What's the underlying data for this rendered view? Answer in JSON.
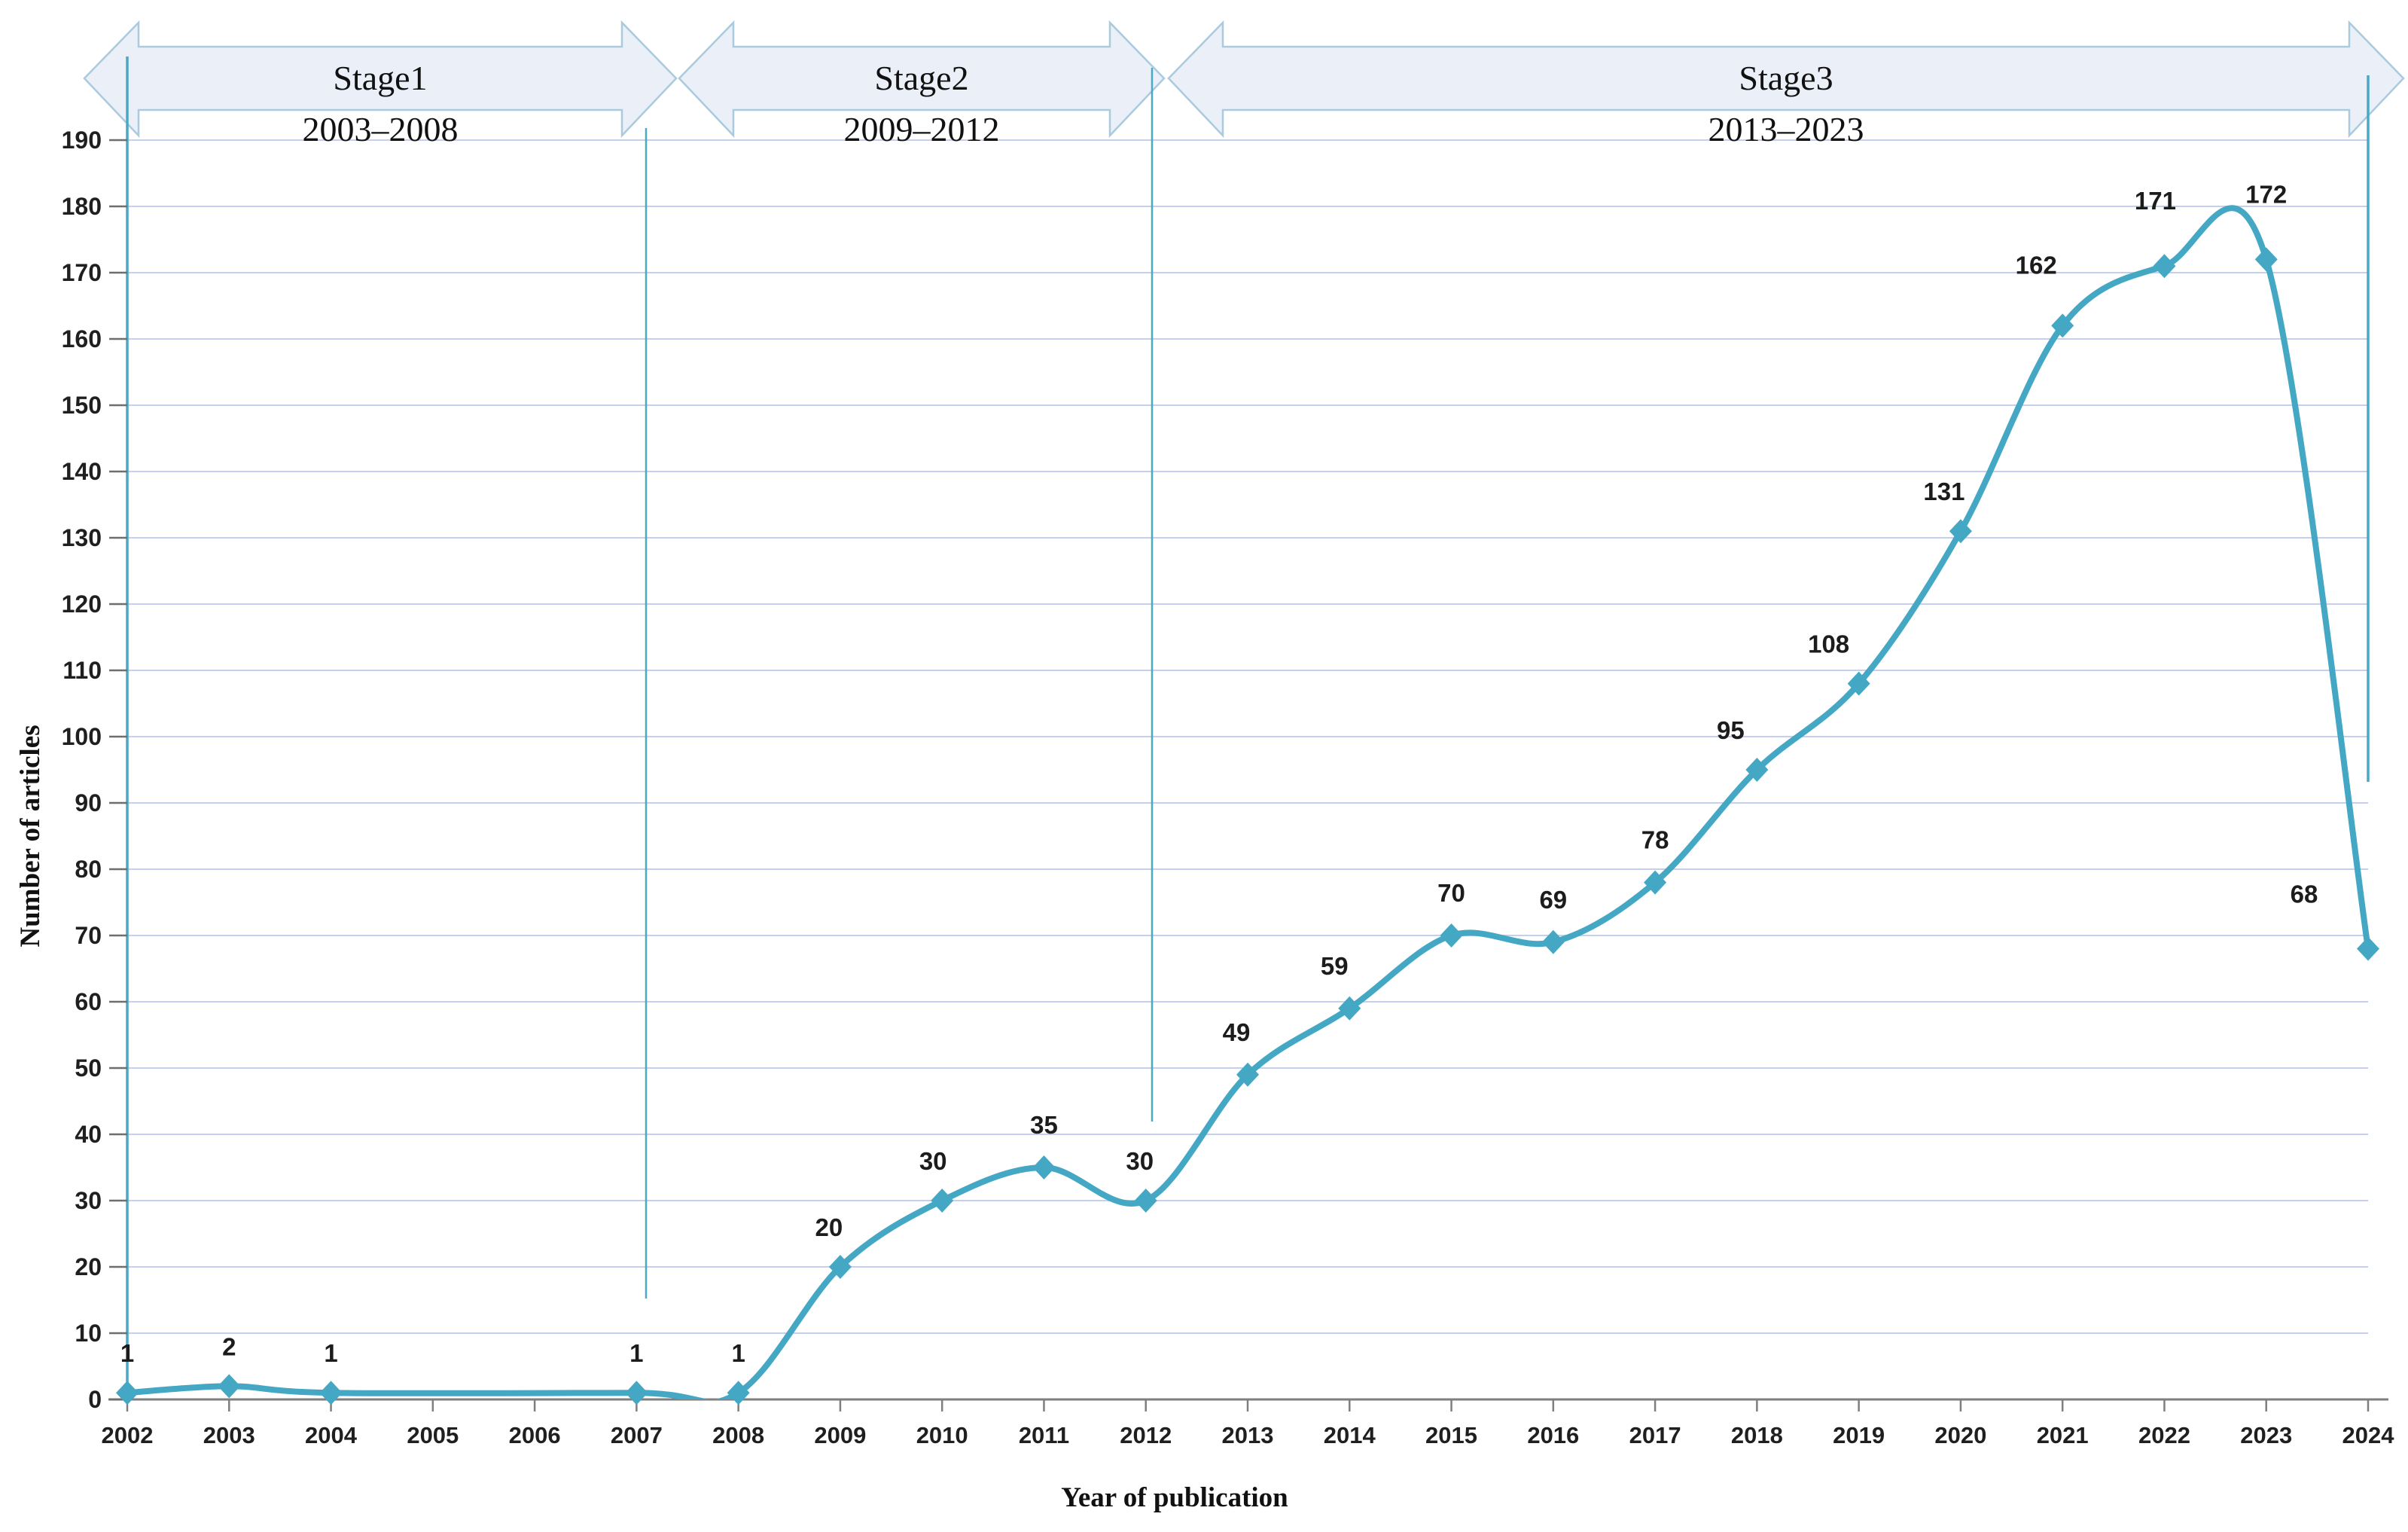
{
  "figure": {
    "stages": [
      {
        "label": "Stage1",
        "range": "2003–2008"
      },
      {
        "label": "Stage2",
        "range": "2009–2012"
      },
      {
        "label": "Stage3",
        "range": "2013–2023"
      }
    ]
  },
  "chart_data": {
    "type": "line",
    "title": "",
    "xlabel": "Year of publication",
    "ylabel": "Number of articles",
    "x": [
      2002,
      2003,
      2004,
      2005,
      2006,
      2007,
      2008,
      2009,
      2010,
      2011,
      2012,
      2013,
      2014,
      2015,
      2016,
      2017,
      2018,
      2019,
      2020,
      2021,
      2022,
      2023,
      2024
    ],
    "values": [
      1,
      2,
      1,
      null,
      null,
      1,
      1,
      20,
      30,
      35,
      30,
      49,
      59,
      70,
      69,
      78,
      95,
      108,
      131,
      162,
      171,
      172,
      68
    ],
    "data_labels": [
      "1",
      "2",
      "1",
      "",
      "",
      "1",
      "1",
      "20",
      "30",
      "35",
      "30",
      "49",
      "59",
      "70",
      "69",
      "78",
      "95",
      "108",
      "131",
      "162",
      "171",
      "172",
      "68"
    ],
    "ylim": [
      0,
      190
    ],
    "ytick_step": 10,
    "grid": true,
    "legend_position": "none",
    "smooth": true,
    "marker": "diamond",
    "annotations": [
      "Stage1 2003–2008",
      "Stage2 2009–2012",
      "Stage3 2013–2023"
    ],
    "colors": {
      "line": "#44a8c4",
      "separator": "#4aa9c6",
      "gridline": "#c4d0ed",
      "banner_fill": "#eaeff8",
      "banner_stroke": "#aacadd",
      "x_axis": "#7f7f7f",
      "tick": "#6e6e6e",
      "text": "#1c1c1c"
    }
  }
}
